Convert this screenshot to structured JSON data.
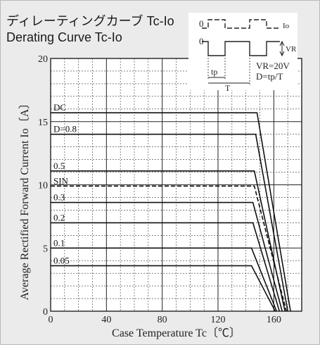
{
  "title_jp": "ディレーティングカーブ Tc-Io",
  "title_en": "Derating Curve Tc-Io",
  "chart_data": {
    "type": "line",
    "title": "Derating Curve Tc-Io",
    "xlabel": "Case Temperature  Tc〔℃〕",
    "ylabel": "Average Rectified Forward Current  Io〔A〕",
    "xlim": [
      0,
      180
    ],
    "ylim": [
      0,
      20
    ],
    "x_ticks": [
      0,
      40,
      80,
      120,
      160
    ],
    "y_ticks": [
      0,
      5,
      10,
      15,
      20
    ],
    "grid": true,
    "series": [
      {
        "name": "DC",
        "x": [
          0,
          148,
          172
        ],
        "y": [
          15.7,
          15.7,
          0
        ],
        "style": "solid"
      },
      {
        "name": "D=0.8",
        "x": [
          0,
          147,
          170
        ],
        "y": [
          14.0,
          14.0,
          0
        ],
        "style": "solid"
      },
      {
        "name": "0.5",
        "x": [
          0,
          146,
          168
        ],
        "y": [
          11.1,
          11.1,
          0
        ],
        "style": "solid"
      },
      {
        "name": "SIN",
        "x": [
          0,
          146,
          169
        ],
        "y": [
          9.9,
          9.9,
          0
        ],
        "style": "dashed"
      },
      {
        "name": "0.3",
        "x": [
          0,
          145,
          166
        ],
        "y": [
          8.6,
          8.6,
          0
        ],
        "style": "solid"
      },
      {
        "name": "0.2",
        "x": [
          0,
          145,
          164
        ],
        "y": [
          7.0,
          7.0,
          0
        ],
        "style": "solid"
      },
      {
        "name": "0.1",
        "x": [
          0,
          144,
          162
        ],
        "y": [
          5.0,
          5.0,
          0
        ],
        "style": "solid"
      },
      {
        "name": "0.05",
        "x": [
          0,
          144,
          161
        ],
        "y": [
          3.6,
          3.6,
          0
        ],
        "style": "solid"
      }
    ],
    "inset": {
      "zero_label": "0",
      "io_label": "Io",
      "vr_label": "VR",
      "tp_label": "tp",
      "t_label": "T",
      "vr_value": "VR=20V",
      "duty": "D=tp/T"
    }
  }
}
